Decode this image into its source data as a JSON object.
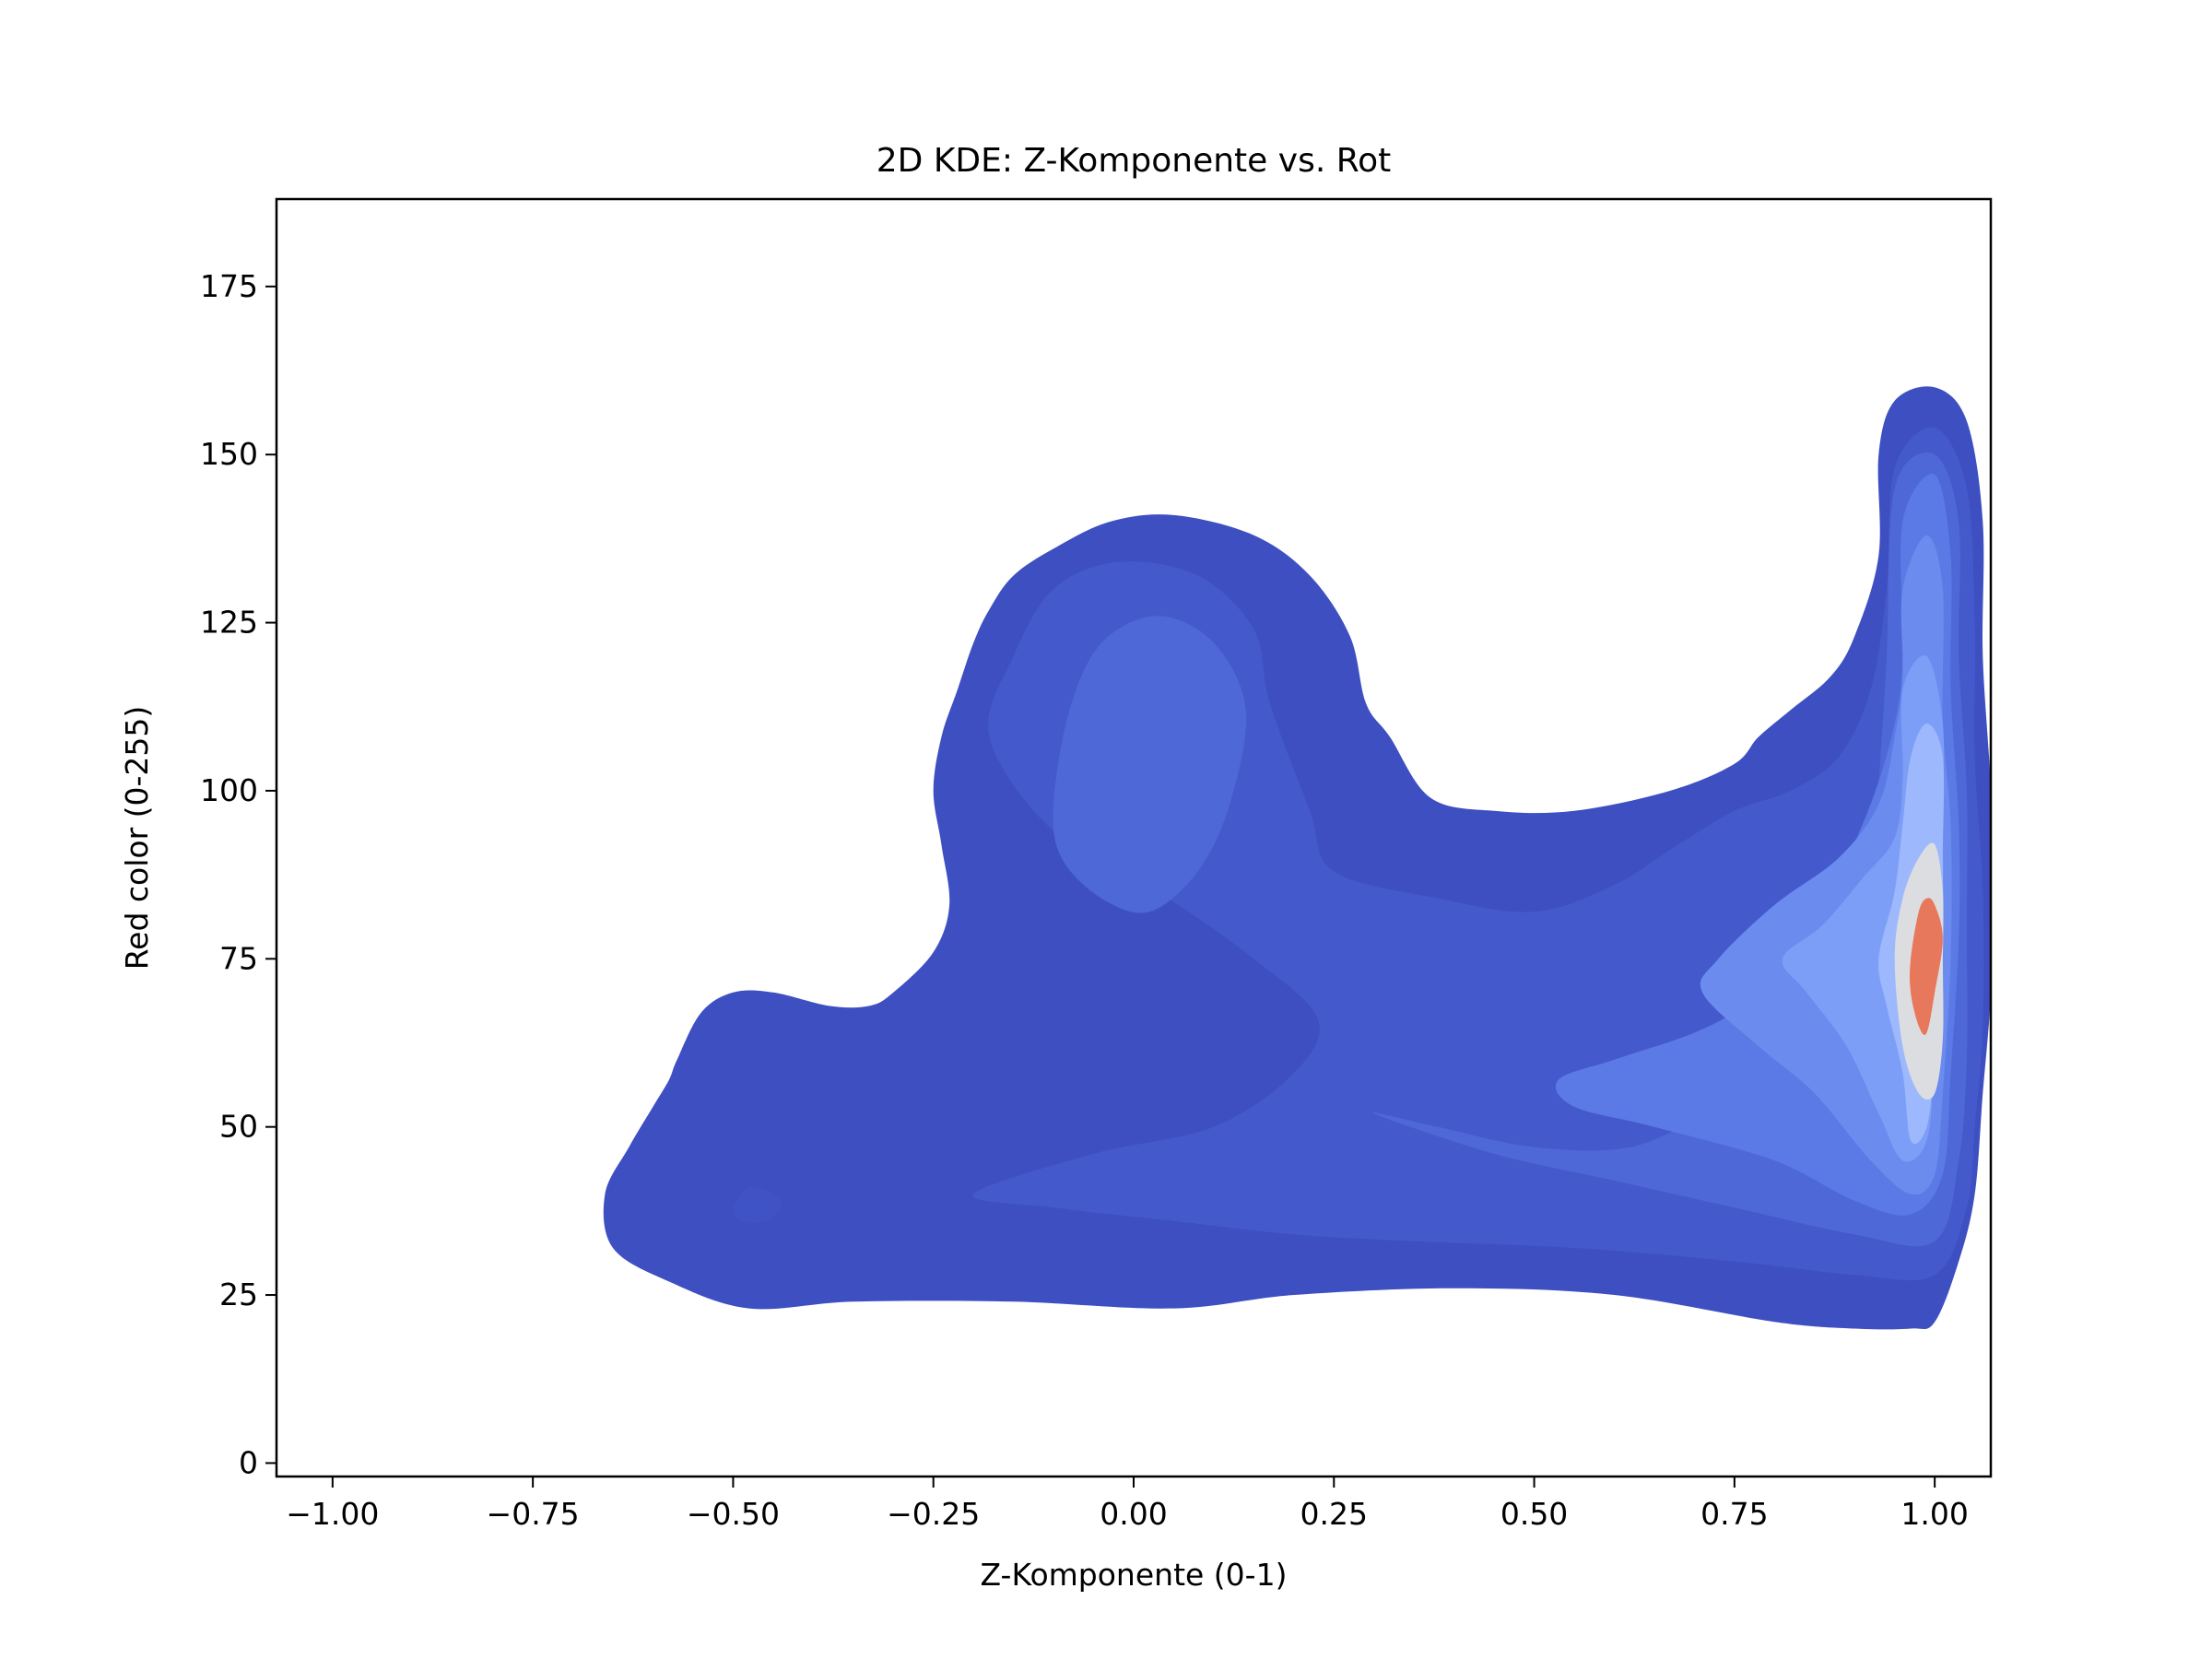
{
  "chart_data": {
    "type": "kde2d",
    "title": "2D KDE: Z-Komponente vs. Rot",
    "xlabel": "Z-Komponente (0-1)",
    "ylabel": "Red color (0-255)",
    "xlim": [
      -1.07,
      1.07
    ],
    "ylim": [
      -2,
      188
    ],
    "xticks": [
      -1.0,
      -0.75,
      -0.5,
      -0.25,
      0.0,
      0.25,
      0.5,
      0.75,
      1.0
    ],
    "xtick_labels": [
      "−1.00",
      "−0.75",
      "−0.50",
      "−0.25",
      "0.00",
      "0.25",
      "0.50",
      "0.75",
      "1.00"
    ],
    "yticks": [
      0,
      25,
      50,
      75,
      100,
      125,
      150,
      175
    ],
    "ytick_labels": [
      "0",
      "25",
      "50",
      "75",
      "100",
      "125",
      "150",
      "175"
    ],
    "colormap": "coolwarm",
    "fill": true,
    "levels": [
      {
        "level": 1,
        "color": "#3e4fc2",
        "points": [
          [
            -0.65,
            32
          ],
          [
            -0.66,
            40
          ],
          [
            -0.63,
            47
          ],
          [
            -0.6,
            53
          ],
          [
            -0.58,
            57
          ],
          [
            -0.57,
            60
          ],
          [
            -0.54,
            67
          ],
          [
            -0.5,
            70
          ],
          [
            -0.45,
            70
          ],
          [
            -0.38,
            68
          ],
          [
            -0.33,
            68
          ],
          [
            -0.3,
            70
          ],
          [
            -0.25,
            76
          ],
          [
            -0.23,
            83
          ],
          [
            -0.24,
            92
          ],
          [
            -0.25,
            100
          ],
          [
            -0.24,
            108
          ],
          [
            -0.22,
            115
          ],
          [
            -0.2,
            122
          ],
          [
            -0.18,
            127
          ],
          [
            -0.15,
            132
          ],
          [
            -0.1,
            136
          ],
          [
            -0.03,
            140
          ],
          [
            0.05,
            141
          ],
          [
            0.15,
            138
          ],
          [
            0.22,
            132
          ],
          [
            0.27,
            123
          ],
          [
            0.29,
            113
          ],
          [
            0.32,
            108
          ],
          [
            0.37,
            99
          ],
          [
            0.45,
            97
          ],
          [
            0.55,
            97
          ],
          [
            0.67,
            100
          ],
          [
            0.75,
            104
          ],
          [
            0.78,
            108
          ],
          [
            0.82,
            112
          ],
          [
            0.87,
            117
          ],
          [
            0.9,
            123
          ],
          [
            0.93,
            135
          ],
          [
            0.93,
            150
          ],
          [
            0.95,
            158
          ],
          [
            1.0,
            160
          ],
          [
            1.04,
            155
          ],
          [
            1.06,
            140
          ],
          [
            1.06,
            120
          ],
          [
            1.07,
            100
          ],
          [
            1.07,
            85
          ],
          [
            1.07,
            70
          ],
          [
            1.06,
            55
          ],
          [
            1.05,
            40
          ],
          [
            1.03,
            30
          ],
          [
            1.0,
            21
          ],
          [
            0.97,
            20
          ],
          [
            0.9,
            20
          ],
          [
            0.8,
            21
          ],
          [
            0.6,
            25
          ],
          [
            0.4,
            26
          ],
          [
            0.2,
            25
          ],
          [
            0.05,
            23
          ],
          [
            -0.15,
            24
          ],
          [
            -0.35,
            24
          ],
          [
            -0.48,
            23
          ],
          [
            -0.58,
            27
          ]
        ]
      },
      {
        "level": 2,
        "color": "#445acc",
        "points": [
          [
            -0.18,
            108
          ],
          [
            -0.15,
            120
          ],
          [
            -0.1,
            130
          ],
          [
            -0.02,
            134
          ],
          [
            0.08,
            132
          ],
          [
            0.15,
            124
          ],
          [
            0.17,
            113
          ],
          [
            0.22,
            97
          ],
          [
            0.25,
            88
          ],
          [
            0.38,
            84
          ],
          [
            0.5,
            82
          ],
          [
            0.6,
            86
          ],
          [
            0.68,
            92
          ],
          [
            0.75,
            97
          ],
          [
            0.82,
            100
          ],
          [
            0.88,
            105
          ],
          [
            0.92,
            115
          ],
          [
            0.94,
            130
          ],
          [
            0.95,
            148
          ],
          [
            1.0,
            154
          ],
          [
            1.04,
            145
          ],
          [
            1.05,
            125
          ],
          [
            1.05,
            105
          ],
          [
            1.06,
            85
          ],
          [
            1.06,
            65
          ],
          [
            1.05,
            50
          ],
          [
            1.04,
            38
          ],
          [
            1.0,
            28
          ],
          [
            0.9,
            28
          ],
          [
            0.75,
            30
          ],
          [
            0.55,
            32
          ],
          [
            0.35,
            33
          ],
          [
            0.2,
            34
          ],
          [
            0.05,
            36
          ],
          [
            -0.1,
            38
          ],
          [
            -0.2,
            40
          ],
          [
            -0.05,
            46
          ],
          [
            0.1,
            50
          ],
          [
            0.2,
            58
          ],
          [
            0.23,
            66
          ],
          [
            0.15,
            75
          ],
          [
            0.03,
            85
          ],
          [
            -0.1,
            94
          ]
        ]
      },
      {
        "level": 3,
        "color": "#4e68d8",
        "points": [
          [
            -0.1,
            98
          ],
          [
            -0.08,
            112
          ],
          [
            -0.04,
            122
          ],
          [
            0.03,
            126
          ],
          [
            0.1,
            122
          ],
          [
            0.14,
            112
          ],
          [
            0.12,
            98
          ],
          [
            0.08,
            88
          ],
          [
            0.02,
            82
          ],
          [
            -0.04,
            84
          ],
          [
            -0.09,
            90
          ]
        ]
      },
      {
        "level": 4,
        "color": "#4e68d8",
        "points": [
          [
            0.3,
            52
          ],
          [
            0.38,
            50
          ],
          [
            0.5,
            47
          ],
          [
            0.62,
            47
          ],
          [
            0.72,
            52
          ],
          [
            0.8,
            55
          ],
          [
            0.88,
            60
          ],
          [
            0.92,
            75
          ],
          [
            0.93,
            100
          ],
          [
            0.94,
            120
          ],
          [
            0.95,
            145
          ],
          [
            1.0,
            150
          ],
          [
            1.03,
            140
          ],
          [
            1.03,
            120
          ],
          [
            1.04,
            100
          ],
          [
            1.04,
            80
          ],
          [
            1.04,
            60
          ],
          [
            1.03,
            45
          ],
          [
            1.0,
            33
          ],
          [
            0.9,
            34
          ],
          [
            0.75,
            38
          ],
          [
            0.6,
            42
          ],
          [
            0.45,
            46
          ]
        ]
      },
      {
        "level": 5,
        "color": "#5b7ae5",
        "points": [
          [
            0.53,
            57
          ],
          [
            0.6,
            60
          ],
          [
            0.7,
            64
          ],
          [
            0.76,
            68
          ],
          [
            0.81,
            74
          ],
          [
            0.87,
            85
          ],
          [
            0.92,
            98
          ],
          [
            0.95,
            110
          ],
          [
            0.96,
            120
          ],
          [
            0.96,
            140
          ],
          [
            1.0,
            147
          ],
          [
            1.02,
            135
          ],
          [
            1.02,
            115
          ],
          [
            1.03,
            95
          ],
          [
            1.03,
            78
          ],
          [
            1.02,
            58
          ],
          [
            1.01,
            43
          ],
          [
            0.97,
            37
          ],
          [
            0.9,
            39
          ],
          [
            0.8,
            45
          ],
          [
            0.65,
            50
          ],
          [
            0.55,
            53
          ]
        ]
      },
      {
        "level": 6,
        "color": "#6b8bef",
        "points": [
          [
            0.71,
            70
          ],
          [
            0.73,
            75
          ],
          [
            0.8,
            83
          ],
          [
            0.88,
            90
          ],
          [
            0.93,
            98
          ],
          [
            0.95,
            108
          ],
          [
            0.96,
            117
          ],
          [
            0.96,
            130
          ],
          [
            0.99,
            138
          ],
          [
            1.01,
            130
          ],
          [
            1.01,
            110
          ],
          [
            1.02,
            95
          ],
          [
            1.02,
            75
          ],
          [
            1.01,
            55
          ],
          [
            1.0,
            43
          ],
          [
            0.97,
            40
          ],
          [
            0.92,
            45
          ],
          [
            0.85,
            55
          ],
          [
            0.78,
            62
          ]
        ]
      },
      {
        "level": 7,
        "color": "#7d9ef7",
        "points": [
          [
            0.81,
            75
          ],
          [
            0.86,
            80
          ],
          [
            0.91,
            87
          ],
          [
            0.95,
            93
          ],
          [
            0.96,
            102
          ],
          [
            0.96,
            115
          ],
          [
            0.99,
            120
          ],
          [
            1.01,
            110
          ],
          [
            1.01,
            95
          ],
          [
            1.01,
            78
          ],
          [
            1.0,
            60
          ],
          [
            0.99,
            48
          ],
          [
            0.96,
            45
          ],
          [
            0.93,
            52
          ],
          [
            0.89,
            62
          ],
          [
            0.84,
            70
          ]
        ]
      },
      {
        "level": 8,
        "color": "#9db8fd",
        "points": [
          [
            0.93,
            75
          ],
          [
            0.95,
            85
          ],
          [
            0.96,
            95
          ],
          [
            0.97,
            105
          ],
          [
            0.99,
            110
          ],
          [
            1.01,
            105
          ],
          [
            1.01,
            90
          ],
          [
            1.01,
            75
          ],
          [
            1.0,
            60
          ],
          [
            0.99,
            50
          ],
          [
            0.97,
            48
          ],
          [
            0.96,
            58
          ],
          [
            0.94,
            68
          ]
        ]
      },
      {
        "level": 9,
        "color": "#dcdde1",
        "points": [
          [
            0.95,
            75
          ],
          [
            0.96,
            84
          ],
          [
            0.98,
            90
          ],
          [
            1.0,
            92
          ],
          [
            1.01,
            85
          ],
          [
            1.01,
            75
          ],
          [
            1.01,
            63
          ],
          [
            1.0,
            55
          ],
          [
            0.98,
            55
          ],
          [
            0.96,
            62
          ]
        ]
      },
      {
        "level": 10,
        "color": "#e8785c",
        "points": [
          [
            0.97,
            75
          ],
          [
            0.98,
            82
          ],
          [
            0.99,
            84
          ],
          [
            1.0,
            83
          ],
          [
            1.01,
            78
          ],
          [
            1.0,
            70
          ],
          [
            0.99,
            64
          ],
          [
            0.98,
            65
          ],
          [
            0.97,
            70
          ]
        ]
      },
      {
        "level": 1,
        "color": "#3f53c6",
        "points": [
          [
            -0.5,
            38
          ],
          [
            -0.48,
            41
          ],
          [
            -0.45,
            40
          ],
          [
            -0.44,
            38
          ],
          [
            -0.46,
            36
          ],
          [
            -0.49,
            36
          ]
        ]
      }
    ]
  }
}
